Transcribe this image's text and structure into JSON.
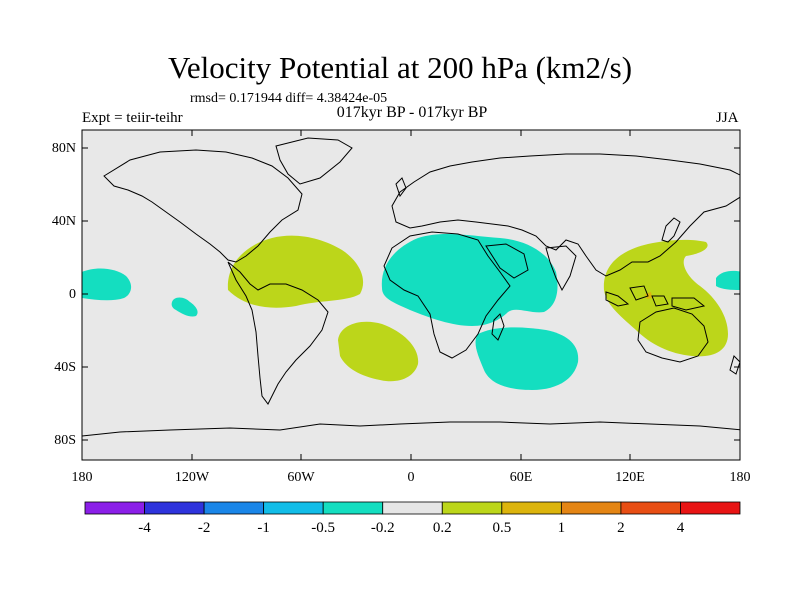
{
  "title": "Velocity Potential at 200 hPa (km2/s)",
  "stats_text": "rmsd= 0.171944 diff= 4.38424e-05",
  "experiment_text": "Expt = teiir-teihr",
  "period_text": "017kyr BP - 017kyr BP",
  "season": "JJA",
  "map": {
    "background_color": "#e8e8e8",
    "y_axis_labels": [
      "80N",
      "40N",
      "0",
      "40S",
      "80S"
    ],
    "x_axis_labels": [
      "180",
      "120W",
      "60W",
      "0",
      "60E",
      "120E",
      "180"
    ]
  },
  "colorbar": {
    "colors": [
      "#8b1fe8",
      "#2e33dc",
      "#1a86e8",
      "#12bde8",
      "#14dec0",
      "#e6e6e6",
      "#bcd61a",
      "#dcb40d",
      "#e48514",
      "#e84e14",
      "#e81414"
    ],
    "labels": [
      "-4",
      "-2",
      "-1",
      "-0.5",
      "-0.2",
      "0.2",
      "0.5",
      "1",
      "2",
      "4"
    ]
  },
  "legend_colors": {
    "positive": "#bcd61a",
    "negative": "#14dec0",
    "strong_positive": "#dcb40d"
  }
}
